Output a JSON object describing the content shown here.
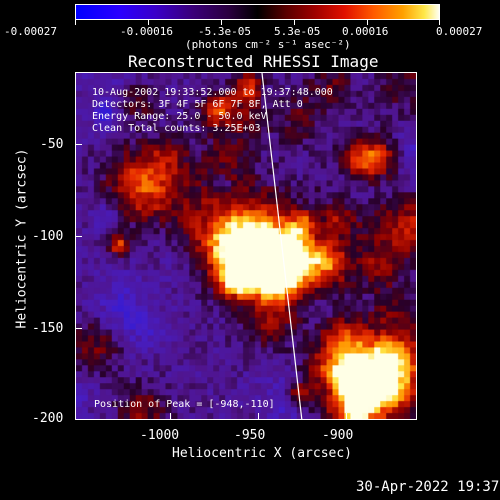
{
  "colorbar": {
    "ticks": [
      "-0.00027",
      "-0.00016",
      "-5.3e-05",
      "5.3e-05",
      "0.00016",
      "0.00027"
    ],
    "units_label": "(photons cm⁻² s⁻¹ asec⁻²)",
    "colors": {
      "low": "#0000ff",
      "mid": "#000000",
      "high": "#ffffff"
    }
  },
  "plot": {
    "title": "Reconstructed RHESSI Image",
    "xlabel": "Heliocentric X (arcsec)",
    "ylabel": "Heliocentric Y (arcsec)",
    "xticks": [
      "-1000",
      "-950",
      "-900"
    ],
    "yticks": [
      "-50",
      "-100",
      "-150",
      "-200"
    ],
    "annotations": [
      "10-Aug-2002 19:33:52.000 to 19:37:48.000",
      "Detectors: 3F 4F 5F 6F 7F 8F, Att 0",
      "Energy Range: 25.0 - 50.0 keV",
      "Clean     Total counts: 3.25E+03"
    ],
    "peak_label": "Position of Peak = [-948,-110]"
  },
  "footer": {
    "timestamp": "30-Apr-2022 19:37"
  }
}
